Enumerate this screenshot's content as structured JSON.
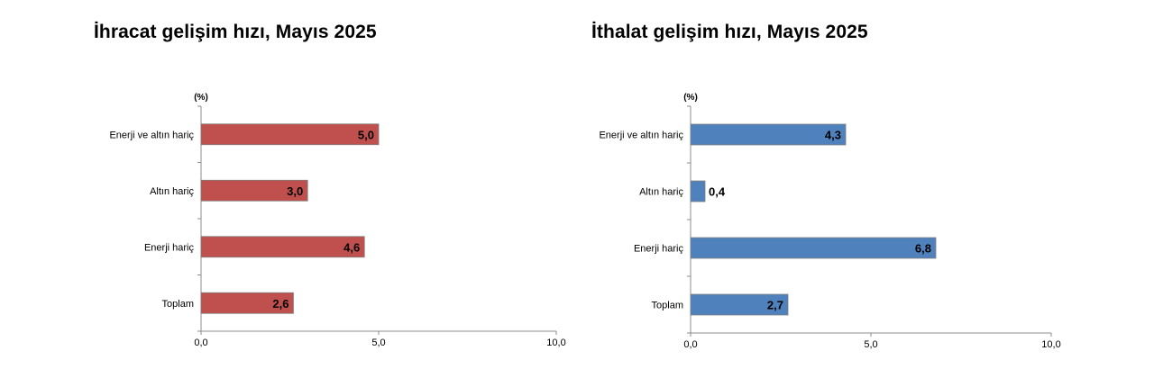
{
  "chart_data": [
    {
      "type": "bar",
      "orientation": "horizontal",
      "title": "İhracat gelişim hızı, Mayıs 2025",
      "unit_label": "(%)",
      "categories": [
        "Enerji ve altın hariç",
        "Altın hariç",
        "Enerji hariç",
        "Toplam"
      ],
      "values": [
        5.0,
        3.0,
        4.6,
        2.6
      ],
      "value_labels": [
        "5,0",
        "3,0",
        "4,6",
        "2,6"
      ],
      "xlim": [
        0,
        10
      ],
      "x_ticks": [
        "0,0",
        "5,0",
        "10,0"
      ],
      "grid": false,
      "color": "#c0504d"
    },
    {
      "type": "bar",
      "orientation": "horizontal",
      "title": "İthalat gelişim hızı, Mayıs 2025",
      "unit_label": "(%)",
      "categories": [
        "Enerji ve altın hariç",
        "Altın hariç",
        "Enerji hariç",
        "Toplam"
      ],
      "values": [
        4.3,
        0.4,
        6.8,
        2.7
      ],
      "value_labels": [
        "4,3",
        "0,4",
        "6,8",
        "2,7"
      ],
      "xlim": [
        0,
        10
      ],
      "x_ticks": [
        "0,0",
        "5,0",
        "10,0"
      ],
      "grid": false,
      "color": "#4f81bd"
    }
  ]
}
